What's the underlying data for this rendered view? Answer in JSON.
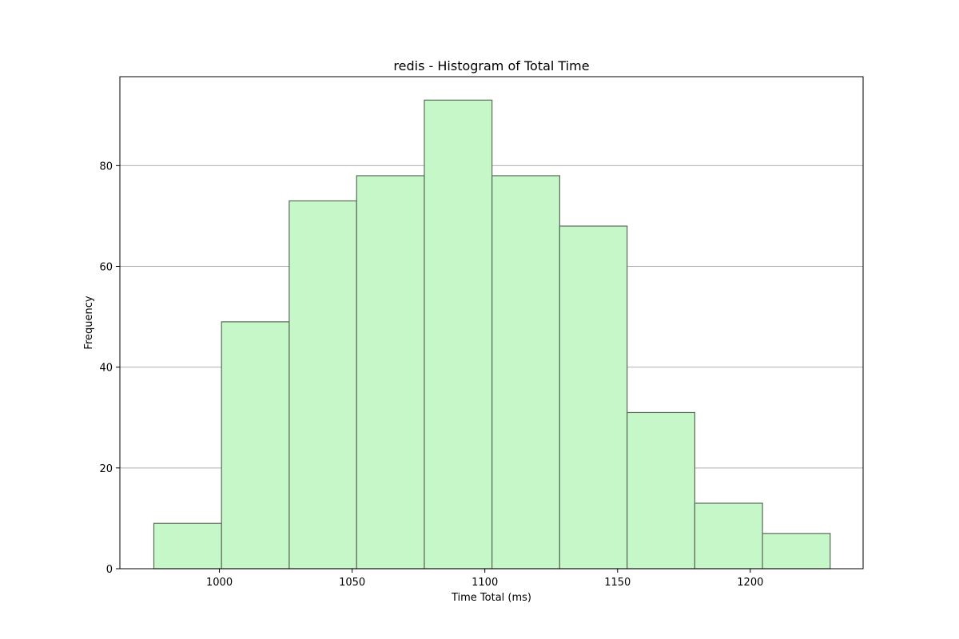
{
  "chart_data": {
    "type": "bar",
    "title": "redis - Histogram of Total Time",
    "xlabel": "Time Total (ms)",
    "ylabel": "Frequency",
    "xlim": [
      962.5,
      1242.5
    ],
    "ylim": [
      0,
      97.65
    ],
    "xticks": [
      1000,
      1050,
      1100,
      1150,
      1200
    ],
    "yticks": [
      0,
      20,
      40,
      60,
      80
    ],
    "grid": "y",
    "bar_color": "#c6f7c9",
    "edge_color": "#5a6b5a",
    "bins": [
      {
        "start": 975.3,
        "end": 1000.8,
        "count": 9
      },
      {
        "start": 1000.8,
        "end": 1026.3,
        "count": 49
      },
      {
        "start": 1026.3,
        "end": 1051.7,
        "count": 73
      },
      {
        "start": 1051.7,
        "end": 1077.2,
        "count": 78
      },
      {
        "start": 1077.2,
        "end": 1102.7,
        "count": 93
      },
      {
        "start": 1102.7,
        "end": 1128.2,
        "count": 78
      },
      {
        "start": 1128.2,
        "end": 1153.6,
        "count": 68
      },
      {
        "start": 1153.6,
        "end": 1179.1,
        "count": 31
      },
      {
        "start": 1179.1,
        "end": 1204.6,
        "count": 13
      },
      {
        "start": 1204.6,
        "end": 1230.1,
        "count": 7
      }
    ]
  }
}
